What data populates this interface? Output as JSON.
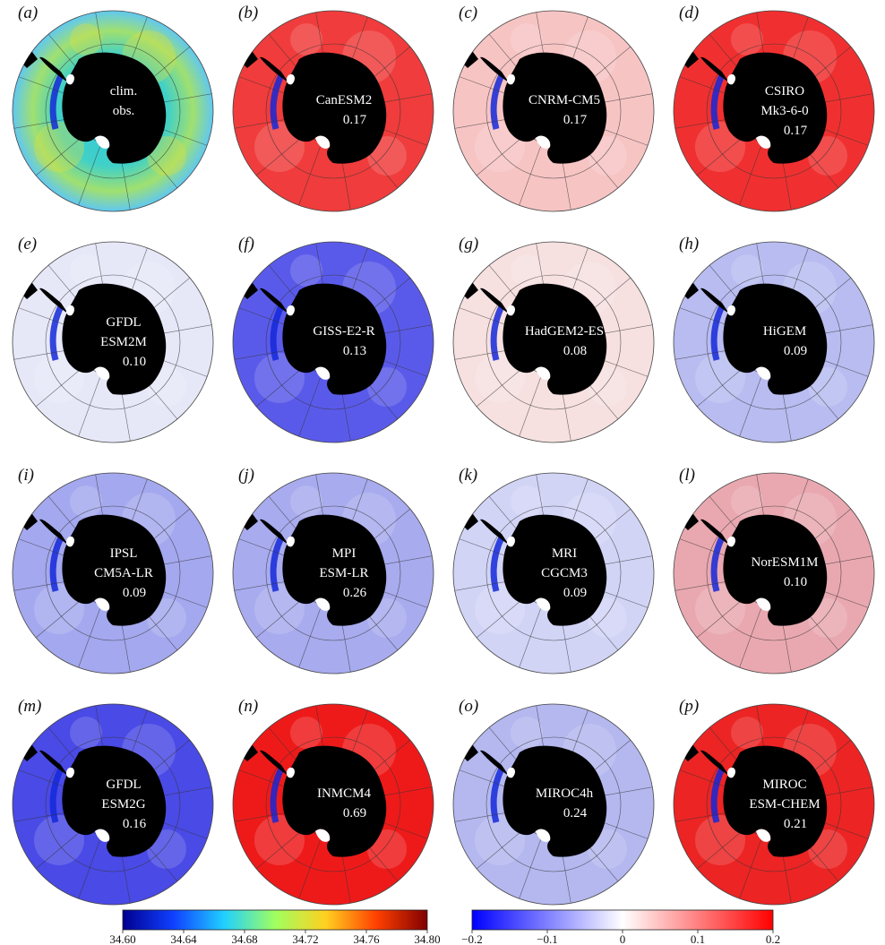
{
  "panels": [
    {
      "letter": "(a)",
      "label_lines": [
        "clim.",
        "obs."
      ],
      "value": "",
      "kind": "clim",
      "mean_color": "#33ccdd"
    },
    {
      "letter": "(b)",
      "label_lines": [
        "CanESM2"
      ],
      "value": "0.17",
      "kind": "anom",
      "mean_color": "#f03c3c"
    },
    {
      "letter": "(c)",
      "label_lines": [
        "CNRM-CM5"
      ],
      "value": "0.17",
      "kind": "anom",
      "mean_color": "#f7c4c4"
    },
    {
      "letter": "(d)",
      "label_lines": [
        "CSIRO",
        "Mk3-6-0"
      ],
      "value": "0.17",
      "kind": "anom",
      "mean_color": "#f03030"
    },
    {
      "letter": "(e)",
      "label_lines": [
        "GFDL",
        "ESM2M"
      ],
      "value": "0.10",
      "kind": "anom",
      "mean_color": "#e6e8f8"
    },
    {
      "letter": "(f)",
      "label_lines": [
        "GISS-E2-R"
      ],
      "value": "0.13",
      "kind": "anom",
      "mean_color": "#5a5aea"
    },
    {
      "letter": "(g)",
      "label_lines": [
        "HadGEM2-ES"
      ],
      "value": "0.08",
      "kind": "anom",
      "mean_color": "#f6e0e0"
    },
    {
      "letter": "(h)",
      "label_lines": [
        "HiGEM"
      ],
      "value": "0.09",
      "kind": "anom",
      "mean_color": "#b8bcf0"
    },
    {
      "letter": "(i)",
      "label_lines": [
        "IPSL",
        "CM5A-LR"
      ],
      "value": "0.09",
      "kind": "anom",
      "mean_color": "#a4a8ee"
    },
    {
      "letter": "(j)",
      "label_lines": [
        "MPI",
        "ESM-LR"
      ],
      "value": "0.26",
      "kind": "anom",
      "mean_color": "#a8abee"
    },
    {
      "letter": "(k)",
      "label_lines": [
        "MRI",
        "CGCM3"
      ],
      "value": "0.09",
      "kind": "anom",
      "mean_color": "#d2d4f6"
    },
    {
      "letter": "(l)",
      "label_lines": [
        "NorESM1M"
      ],
      "value": "0.10",
      "kind": "anom",
      "mean_color": "#e9a8b0"
    },
    {
      "letter": "(m)",
      "label_lines": [
        "GFDL",
        "ESM2G"
      ],
      "value": "0.16",
      "kind": "anom",
      "mean_color": "#4a4ae6"
    },
    {
      "letter": "(n)",
      "label_lines": [
        "INMCM4"
      ],
      "value": "0.69",
      "kind": "anom",
      "mean_color": "#ee1a1a"
    },
    {
      "letter": "(o)",
      "label_lines": [
        "MIROC4h"
      ],
      "value": "0.24",
      "kind": "anom",
      "mean_color": "#b4b8ef"
    },
    {
      "letter": "(p)",
      "label_lines": [
        "MIROC",
        "ESM-CHEM"
      ],
      "value": "0.21",
      "kind": "anom",
      "mean_color": "#ec2424"
    }
  ],
  "colorbars": [
    {
      "name": "climatology",
      "ticks": [
        "34.60",
        "34.64",
        "34.68",
        "34.72",
        "34.76",
        "34.80"
      ],
      "stops": [
        "#000090",
        "#1040ff",
        "#20d0ff",
        "#a0ff60",
        "#ffd020",
        "#ff4000",
        "#800000"
      ]
    },
    {
      "name": "anomaly",
      "ticks": [
        "−0.2",
        "−0.1",
        "0",
        "0.1",
        "0.2"
      ],
      "stops": [
        "#0000ff",
        "#8080ff",
        "#ffffff",
        "#ff8080",
        "#ff0000"
      ]
    }
  ],
  "colors": {
    "land": "#000000",
    "ice_shelf": "#ffffff",
    "grid": "#333333"
  }
}
